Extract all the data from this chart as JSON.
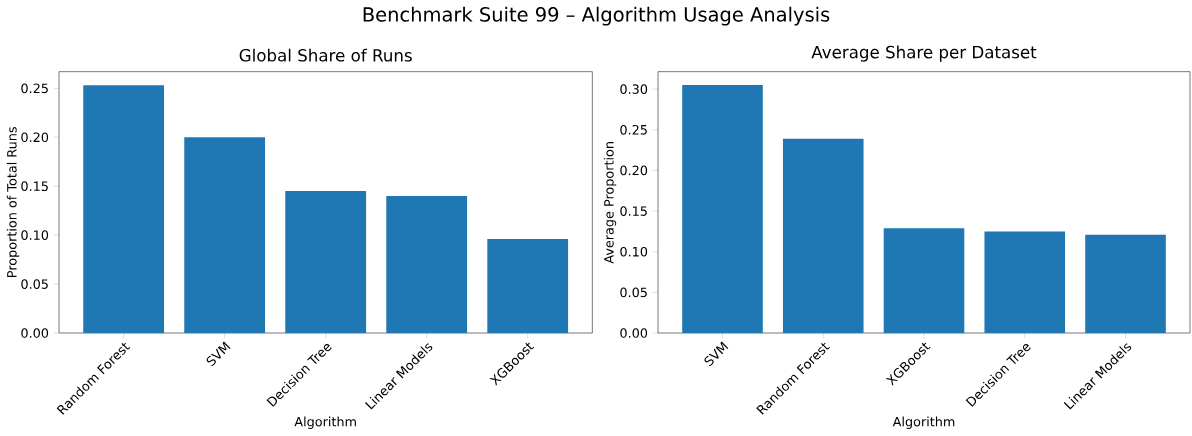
{
  "chart_data": [
    {
      "type": "bar",
      "title": "Global Share of Runs",
      "xlabel": "Algorithm",
      "ylabel": "Proportion of Total Runs",
      "annotations": [
        "Benchmark Suite 99 – Algorithm Usage Analysis"
      ],
      "categories": [
        "Random Forest",
        "SVM",
        "Decision Tree",
        "Linear Models",
        "XGBoost"
      ],
      "values": [
        0.253,
        0.2,
        0.145,
        0.14,
        0.096
      ],
      "color": "#1f77b4",
      "ylim": [
        0,
        0.267
      ],
      "yticks": [
        {
          "value": 0,
          "label": "0.00"
        },
        {
          "value": 0.05,
          "label": "0.05"
        },
        {
          "value": 0.1,
          "label": "0.10"
        },
        {
          "value": 0.15,
          "label": "0.15"
        },
        {
          "value": 0.2,
          "label": "0.20"
        },
        {
          "value": 0.25,
          "label": "0.25"
        }
      ],
      "grid": false
    },
    {
      "type": "bar",
      "title": "Average Share per Dataset",
      "xlabel": "Algorithm",
      "ylabel": "Average Proportion",
      "categories": [
        "SVM",
        "Random Forest",
        "XGBoost",
        "Decision Tree",
        "Linear Models"
      ],
      "values": [
        0.305,
        0.239,
        0.129,
        0.125,
        0.121
      ],
      "color": "#1f77b4",
      "ylim": [
        0,
        0.3215
      ],
      "yticks": [
        {
          "value": 0,
          "label": "0.00"
        },
        {
          "value": 0.05,
          "label": "0.05"
        },
        {
          "value": 0.1,
          "label": "0.10"
        },
        {
          "value": 0.15,
          "label": "0.15"
        },
        {
          "value": 0.2,
          "label": "0.20"
        },
        {
          "value": 0.25,
          "label": "0.25"
        },
        {
          "value": 0.3,
          "label": "0.30"
        }
      ],
      "grid": false
    }
  ]
}
